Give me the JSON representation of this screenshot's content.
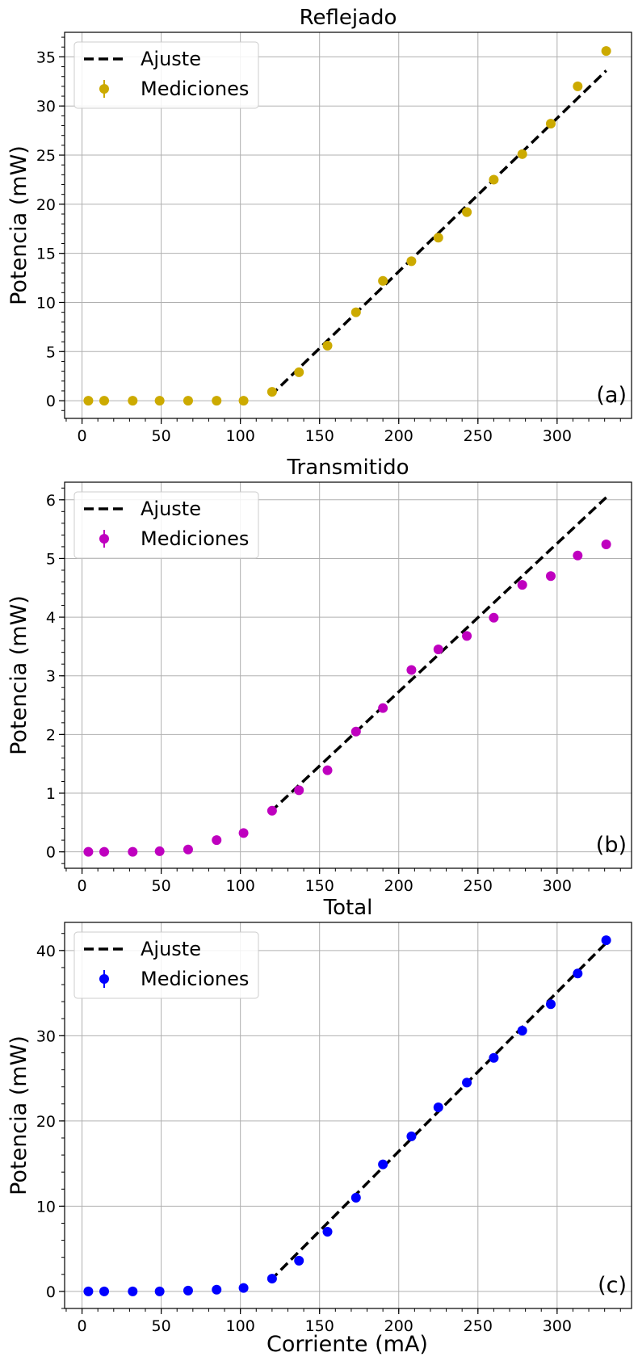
{
  "xlabel": "Corriente (mA)",
  "chart_data": [
    {
      "type": "scatter",
      "title": "Reflejado",
      "ylabel": "Potencia (mW)",
      "panel_label": "(a)",
      "color": "#ccaa00",
      "xlim": [
        -11,
        347
      ],
      "ylim": [
        -1.8,
        37.5
      ],
      "xticks": [
        0,
        50,
        100,
        150,
        200,
        250,
        300
      ],
      "yticks": [
        0,
        5,
        10,
        15,
        20,
        25,
        30,
        35
      ],
      "legend": [
        "Ajuste",
        "Mediciones"
      ],
      "legend_position": "upper left",
      "grid": true,
      "fit": {
        "x": [
          119,
          331
        ],
        "y": [
          0.5,
          33.6
        ]
      },
      "series": [
        {
          "name": "Mediciones",
          "x": [
            4,
            14,
            32,
            49,
            67,
            85,
            102,
            120,
            137,
            155,
            173,
            190,
            208,
            225,
            243,
            260,
            278,
            296,
            313,
            331
          ],
          "y": [
            0,
            0,
            0,
            0,
            0,
            0,
            0,
            0.9,
            2.9,
            5.6,
            9.0,
            12.2,
            14.2,
            16.6,
            19.2,
            22.5,
            25.1,
            28.2,
            32.0,
            35.6
          ]
        }
      ]
    },
    {
      "type": "scatter",
      "title": "Transmitido",
      "ylabel": "Potencia (mW)",
      "panel_label": "(b)",
      "color": "#bf00bf",
      "xlim": [
        -11,
        347
      ],
      "ylim": [
        -0.28,
        6.3
      ],
      "xticks": [
        0,
        50,
        100,
        150,
        200,
        250,
        300
      ],
      "yticks": [
        0,
        1,
        2,
        3,
        4,
        5,
        6
      ],
      "legend": [
        "Ajuste",
        "Mediciones"
      ],
      "legend_position": "upper left",
      "grid": true,
      "fit": {
        "x": [
          119,
          331
        ],
        "y": [
          0.68,
          6.04
        ]
      },
      "series": [
        {
          "name": "Mediciones",
          "x": [
            4,
            14,
            32,
            49,
            67,
            85,
            102,
            120,
            137,
            155,
            173,
            190,
            208,
            225,
            243,
            260,
            278,
            296,
            313,
            331
          ],
          "y": [
            0.0,
            0.0,
            0.0,
            0.01,
            0.04,
            0.2,
            0.32,
            0.7,
            1.05,
            1.39,
            2.05,
            2.45,
            3.1,
            3.45,
            3.68,
            3.99,
            4.55,
            4.7,
            5.05,
            5.24
          ]
        }
      ]
    },
    {
      "type": "scatter",
      "title": "Total",
      "ylabel": "Potencia (mW)",
      "panel_label": "(c)",
      "color": "#0000ff",
      "xlim": [
        -11,
        347
      ],
      "ylim": [
        -2.0,
        43.3
      ],
      "xticks": [
        0,
        50,
        100,
        150,
        200,
        250,
        300
      ],
      "yticks": [
        0,
        10,
        20,
        30,
        40
      ],
      "legend": [
        "Ajuste",
        "Mediciones"
      ],
      "legend_position": "upper left",
      "grid": true,
      "fit": {
        "x": [
          119,
          331
        ],
        "y": [
          1.3,
          40.9
        ]
      },
      "series": [
        {
          "name": "Mediciones",
          "x": [
            4,
            14,
            32,
            49,
            67,
            85,
            102,
            120,
            137,
            155,
            173,
            190,
            208,
            225,
            243,
            260,
            278,
            296,
            313,
            331
          ],
          "y": [
            0,
            0,
            0,
            0,
            0.1,
            0.2,
            0.4,
            1.5,
            3.6,
            7.0,
            11.0,
            14.9,
            18.2,
            21.6,
            24.5,
            27.4,
            30.6,
            33.7,
            37.3,
            41.2
          ]
        }
      ]
    }
  ]
}
